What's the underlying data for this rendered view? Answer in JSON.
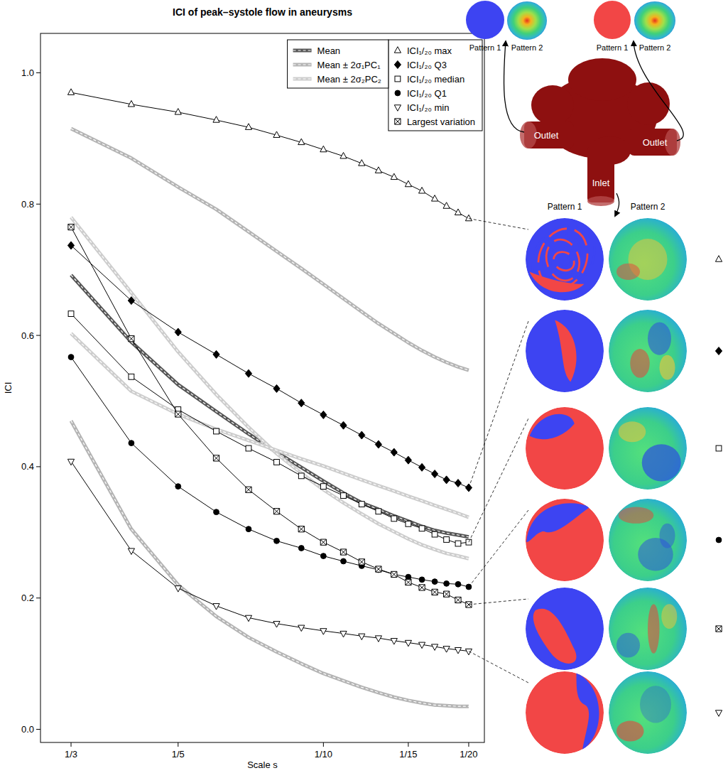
{
  "chart_data": {
    "type": "line",
    "title": "ICI of peak–systole flow in aneurysms",
    "x_label": "Scale s",
    "y_label": "ICI",
    "log": "x",
    "grid": false,
    "legend": "top-right",
    "x": [
      0.3333,
      0.25,
      0.2,
      0.1667,
      0.1429,
      0.125,
      0.1111,
      0.1,
      0.0909,
      0.0833,
      0.0769,
      0.0714,
      0.0667,
      0.0625,
      0.0588,
      0.0556,
      0.0526,
      0.05
    ],
    "xlim": [
      0.3856,
      0.0464
    ],
    "xticks": [
      {
        "value": 0.3333,
        "label": "1/3"
      },
      {
        "value": 0.2,
        "label": "1/5"
      },
      {
        "value": 0.1,
        "label": "1/10"
      },
      {
        "value": 0.0667,
        "label": "1/15"
      },
      {
        "value": 0.05,
        "label": "1/20"
      }
    ],
    "ylim": [
      -0.02,
      1.06
    ],
    "yticks": [
      {
        "value": 0,
        "label": "0.0"
      },
      0.2,
      0.4,
      0.6,
      0.8,
      {
        "value": 1,
        "label": "1.0"
      }
    ],
    "series": [
      {
        "name": "ICI₁/₂₀ max",
        "color": "#000000",
        "marker": "triangle-up",
        "line_style": "solid",
        "values": [
          0.97,
          0.952,
          0.94,
          0.928,
          0.917,
          0.905,
          0.894,
          0.883,
          0.873,
          0.862,
          0.851,
          0.841,
          0.83,
          0.82,
          0.808,
          0.797,
          0.787,
          0.778
        ]
      },
      {
        "name": "ICI₁/₂₀ Q3",
        "color": "#000000",
        "marker": "diamond",
        "line_style": "solid",
        "values": [
          0.737,
          0.653,
          0.605,
          0.571,
          0.542,
          0.519,
          0.497,
          0.479,
          0.463,
          0.448,
          0.434,
          0.422,
          0.41,
          0.399,
          0.389,
          0.38,
          0.375,
          0.368
        ]
      },
      {
        "name": "ICI₁/₂₀ median",
        "color": "#000000",
        "marker": "square",
        "line_style": "solid",
        "values": [
          0.633,
          0.537,
          0.487,
          0.454,
          0.428,
          0.407,
          0.386,
          0.37,
          0.356,
          0.343,
          0.332,
          0.321,
          0.313,
          0.306,
          0.297,
          0.289,
          0.283,
          0.285
        ]
      },
      {
        "name": "ICI₁/₂₀ Q1",
        "color": "#000000",
        "marker": "circle",
        "line_style": "solid",
        "values": [
          0.567,
          0.436,
          0.37,
          0.331,
          0.305,
          0.287,
          0.276,
          0.264,
          0.256,
          0.249,
          0.243,
          0.236,
          0.232,
          0.228,
          0.225,
          0.222,
          0.221,
          0.217
        ]
      },
      {
        "name": "ICI₁/₂₀ min",
        "color": "#000000",
        "marker": "triangle-down",
        "line_style": "solid",
        "values": [
          0.408,
          0.272,
          0.215,
          0.188,
          0.17,
          0.161,
          0.155,
          0.15,
          0.146,
          0.142,
          0.139,
          0.135,
          0.132,
          0.129,
          0.126,
          0.123,
          0.121,
          0.119
        ]
      },
      {
        "name": "Largest variation",
        "color": "#000000",
        "marker": "square-x",
        "line_style": "solid",
        "values": [
          0.765,
          0.595,
          0.48,
          0.413,
          0.365,
          0.332,
          0.305,
          0.285,
          0.27,
          0.255,
          0.244,
          0.236,
          0.224,
          0.216,
          0.209,
          0.206,
          0.197,
          0.19
        ]
      },
      {
        "name": "Mean",
        "color": "#555555",
        "line_style": "double",
        "values": [
          0.692,
          0.59,
          0.525,
          0.484,
          0.45,
          0.422,
          0.399,
          0.378,
          0.36,
          0.345,
          0.335,
          0.325,
          0.317,
          0.309,
          0.303,
          0.299,
          0.296,
          0.293
        ]
      },
      {
        "name": "Mean ± 2σ₁PC₁",
        "color": "#b4b4b4",
        "line_style": "double",
        "values": [
          0.915,
          0.87,
          0.826,
          0.792,
          0.758,
          0.728,
          0.702,
          0.678,
          0.656,
          0.636,
          0.618,
          0.603,
          0.589,
          0.577,
          0.567,
          0.559,
          0.552,
          0.547
        ],
        "values_minus": [
          0.47,
          0.305,
          0.22,
          0.172,
          0.14,
          0.118,
          0.1,
          0.085,
          0.074,
          0.064,
          0.056,
          0.049,
          0.044,
          0.04,
          0.037,
          0.036,
          0.035,
          0.035
        ]
      },
      {
        "name": "Mean ± 2σ₂PC₂",
        "color": "#cdcdcd",
        "line_style": "double",
        "values": [
          0.78,
          0.665,
          0.575,
          0.51,
          0.46,
          0.42,
          0.39,
          0.365,
          0.345,
          0.328,
          0.313,
          0.301,
          0.29,
          0.281,
          0.274,
          0.268,
          0.264,
          0.26
        ],
        "values_minus": [
          0.603,
          0.515,
          0.48,
          0.457,
          0.44,
          0.425,
          0.412,
          0.401,
          0.39,
          0.38,
          0.371,
          0.363,
          0.355,
          0.348,
          0.341,
          0.335,
          0.329,
          0.323
        ]
      }
    ]
  },
  "figure": {
    "top_labels": [
      "Pattern 1",
      "Pattern 2",
      "Pattern 1",
      "Pattern 2"
    ],
    "vessel_labels": [
      "Outlet",
      "Outlet",
      "Inlet"
    ],
    "column_heads": [
      "Pattern 1",
      "Pattern 2"
    ],
    "inset_series": [
      0,
      1,
      2,
      3,
      5,
      4
    ]
  }
}
